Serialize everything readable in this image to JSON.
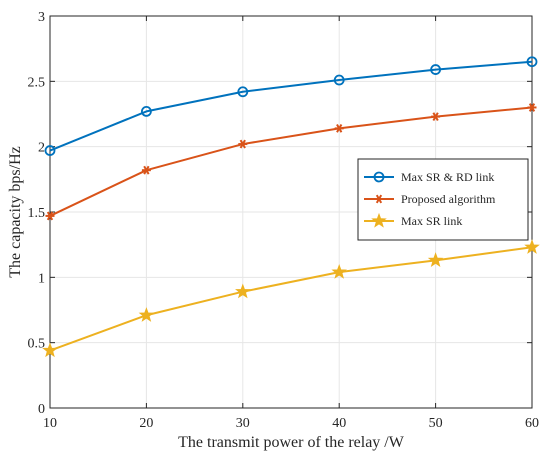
{
  "chart_data": {
    "type": "line",
    "title": "",
    "xlabel": "The transmit power of the relay /W",
    "ylabel": "The capacity bps/Hz",
    "x": [
      10,
      20,
      30,
      40,
      50,
      60
    ],
    "xlim": [
      10,
      60
    ],
    "ylim": [
      0,
      3
    ],
    "xticks": [
      "10",
      "20",
      "30",
      "40",
      "50",
      "60"
    ],
    "yticks": [
      "0",
      "0.5",
      "1",
      "1.5",
      "2",
      "2.5",
      "3"
    ],
    "grid": true,
    "legend_position": "right",
    "series": [
      {
        "name": "Max SR & RD link",
        "values": [
          1.97,
          2.27,
          2.42,
          2.51,
          2.59,
          2.65
        ],
        "color": "#0072BD",
        "marker": "circle"
      },
      {
        "name": "Proposed algorithm",
        "values": [
          1.47,
          1.82,
          2.02,
          2.14,
          2.23,
          2.3
        ],
        "color": "#D95319",
        "marker": "asterisk"
      },
      {
        "name": "Max SR link",
        "values": [
          0.44,
          0.71,
          0.89,
          1.04,
          1.13,
          1.23
        ],
        "color": "#EDB120",
        "marker": "star"
      }
    ]
  }
}
